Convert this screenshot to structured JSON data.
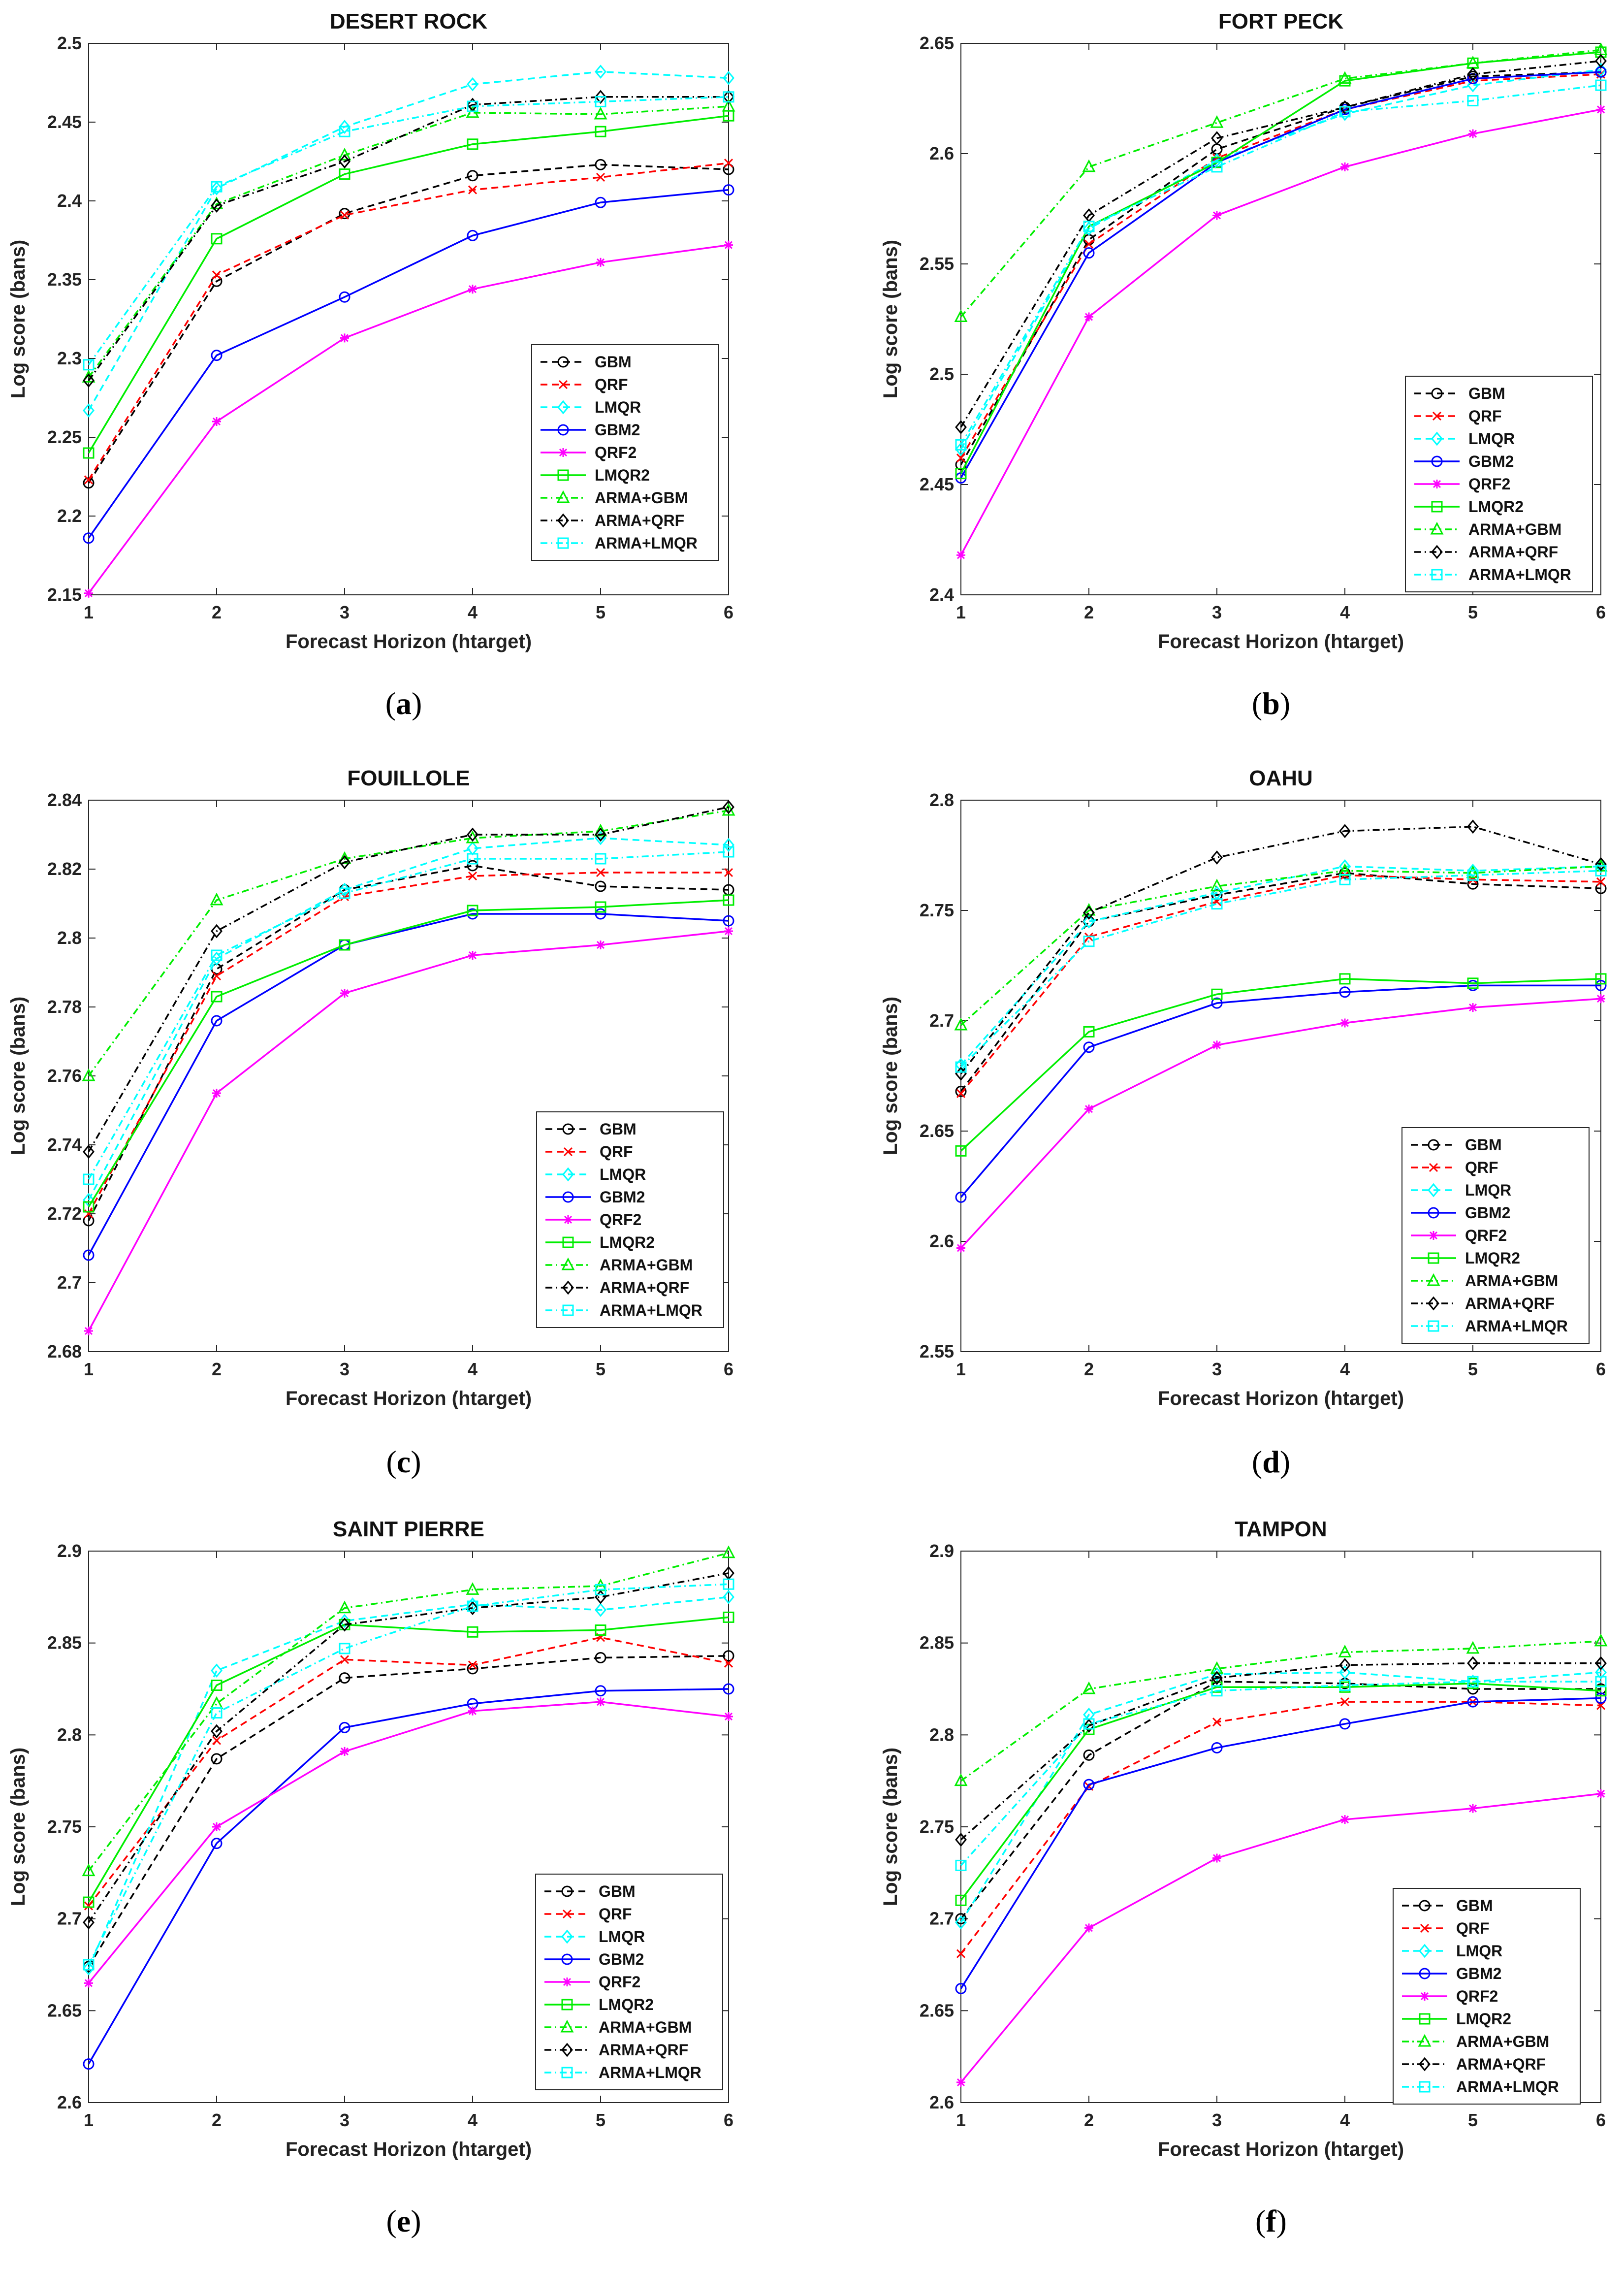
{
  "series_styles": [
    {
      "name": "GBM",
      "color": "#000000",
      "marker": "circle",
      "dash": "dashed"
    },
    {
      "name": "QRF",
      "color": "#ff0000",
      "marker": "x",
      "dash": "dashed"
    },
    {
      "name": "LMQR",
      "color": "#00ffff",
      "marker": "diamond",
      "dash": "dashed"
    },
    {
      "name": "GBM2",
      "color": "#0000ff",
      "marker": "circle",
      "dash": "solid"
    },
    {
      "name": "QRF2",
      "color": "#ff00ff",
      "marker": "asterisk",
      "dash": "solid"
    },
    {
      "name": "LMQR2",
      "color": "#00ee00",
      "marker": "square",
      "dash": "solid"
    },
    {
      "name": "ARMA+GBM",
      "color": "#00ee00",
      "marker": "triangle",
      "dash": "dashdot"
    },
    {
      "name": "ARMA+QRF",
      "color": "#000000",
      "marker": "diamond",
      "dash": "dashdot"
    },
    {
      "name": "ARMA+LMQR",
      "color": "#00ffff",
      "marker": "square",
      "dash": "dashdot"
    }
  ],
  "chart_data": [
    {
      "panel": "(a)",
      "type": "line",
      "title": "DESERT ROCK",
      "xlabel": "Forecast Horizon (htarget)",
      "ylabel": "Log score (bans)",
      "x": [
        1,
        2,
        3,
        4,
        5,
        6
      ],
      "xticks": [
        "1",
        "2",
        "3",
        "4",
        "5",
        "6"
      ],
      "ylim": [
        2.15,
        2.5
      ],
      "yticks": [
        "2.15",
        "2.2",
        "2.25",
        "2.3",
        "2.35",
        "2.4",
        "2.45",
        "2.5"
      ],
      "legend_position": "right-middle",
      "series": [
        {
          "name": "GBM",
          "values": [
            2.221,
            2.349,
            2.392,
            2.416,
            2.423,
            2.42
          ]
        },
        {
          "name": "QRF",
          "values": [
            2.223,
            2.353,
            2.391,
            2.407,
            2.415,
            2.424
          ]
        },
        {
          "name": "LMQR",
          "values": [
            2.267,
            2.408,
            2.447,
            2.474,
            2.482,
            2.478
          ]
        },
        {
          "name": "GBM2",
          "values": [
            2.186,
            2.302,
            2.339,
            2.378,
            2.399,
            2.407
          ]
        },
        {
          "name": "QRF2",
          "values": [
            2.151,
            2.26,
            2.313,
            2.344,
            2.361,
            2.372
          ]
        },
        {
          "name": "LMQR2",
          "values": [
            2.24,
            2.376,
            2.417,
            2.436,
            2.444,
            2.454
          ]
        },
        {
          "name": "ARMA+GBM",
          "values": [
            2.288,
            2.398,
            2.429,
            2.456,
            2.455,
            2.46
          ]
        },
        {
          "name": "ARMA+QRF",
          "values": [
            2.286,
            2.397,
            2.425,
            2.461,
            2.466,
            2.466
          ]
        },
        {
          "name": "ARMA+LMQR",
          "values": [
            2.296,
            2.409,
            2.444,
            2.46,
            2.463,
            2.466
          ]
        }
      ]
    },
    {
      "panel": "(b)",
      "type": "line",
      "title": "FORT PECK",
      "xlabel": "Forecast Horizon (htarget)",
      "ylabel": "Log score (bans)",
      "x": [
        1,
        2,
        3,
        4,
        5,
        6
      ],
      "xticks": [
        "1",
        "2",
        "3",
        "4",
        "5",
        "6"
      ],
      "ylim": [
        2.4,
        2.65
      ],
      "yticks": [
        "2.4",
        "2.45",
        "2.5",
        "2.55",
        "2.6",
        "2.65"
      ],
      "legend_position": "bottom-right",
      "series": [
        {
          "name": "GBM",
          "values": [
            2.459,
            2.561,
            2.602,
            2.621,
            2.635,
            2.637
          ]
        },
        {
          "name": "QRF",
          "values": [
            2.462,
            2.559,
            2.598,
            2.62,
            2.633,
            2.636
          ]
        },
        {
          "name": "LMQR",
          "values": [
            2.466,
            2.566,
            2.597,
            2.618,
            2.631,
            2.638
          ]
        },
        {
          "name": "GBM2",
          "values": [
            2.453,
            2.555,
            2.596,
            2.62,
            2.634,
            2.637
          ]
        },
        {
          "name": "QRF2",
          "values": [
            2.418,
            2.526,
            2.572,
            2.594,
            2.609,
            2.62
          ]
        },
        {
          "name": "LMQR2",
          "values": [
            2.455,
            2.567,
            2.596,
            2.633,
            2.641,
            2.646
          ]
        },
        {
          "name": "ARMA+GBM",
          "values": [
            2.526,
            2.594,
            2.614,
            2.634,
            2.641,
            2.647
          ]
        },
        {
          "name": "ARMA+QRF",
          "values": [
            2.476,
            2.572,
            2.607,
            2.621,
            2.636,
            2.642
          ]
        },
        {
          "name": "ARMA+LMQR",
          "values": [
            2.468,
            2.567,
            2.594,
            2.619,
            2.624,
            2.631
          ]
        }
      ]
    },
    {
      "panel": "(c)",
      "type": "line",
      "title": "FOUILLOLE",
      "xlabel": "Forecast Horizon (htarget)",
      "ylabel": "Log score (bans)",
      "x": [
        1,
        2,
        3,
        4,
        5,
        6
      ],
      "xticks": [
        "1",
        "2",
        "3",
        "4",
        "5",
        "6"
      ],
      "ylim": [
        2.68,
        2.84
      ],
      "yticks": [
        "2.68",
        "2.7",
        "2.72",
        "2.74",
        "2.76",
        "2.78",
        "2.8",
        "2.82",
        "2.84"
      ],
      "legend_position": "bottom-right",
      "series": [
        {
          "name": "GBM",
          "values": [
            2.718,
            2.791,
            2.814,
            2.821,
            2.815,
            2.814
          ]
        },
        {
          "name": "QRF",
          "values": [
            2.72,
            2.789,
            2.812,
            2.818,
            2.819,
            2.819
          ]
        },
        {
          "name": "LMQR",
          "values": [
            2.724,
            2.794,
            2.814,
            2.826,
            2.829,
            2.827
          ]
        },
        {
          "name": "GBM2",
          "values": [
            2.708,
            2.776,
            2.798,
            2.807,
            2.807,
            2.805
          ]
        },
        {
          "name": "QRF2",
          "values": [
            2.686,
            2.755,
            2.784,
            2.795,
            2.798,
            2.802
          ]
        },
        {
          "name": "LMQR2",
          "values": [
            2.722,
            2.783,
            2.798,
            2.808,
            2.809,
            2.811
          ]
        },
        {
          "name": "ARMA+GBM",
          "values": [
            2.76,
            2.811,
            2.823,
            2.829,
            2.831,
            2.837
          ]
        },
        {
          "name": "ARMA+QRF",
          "values": [
            2.738,
            2.802,
            2.822,
            2.83,
            2.83,
            2.838
          ]
        },
        {
          "name": "ARMA+LMQR",
          "values": [
            2.73,
            2.795,
            2.813,
            2.823,
            2.823,
            2.825
          ]
        }
      ]
    },
    {
      "panel": "(d)",
      "type": "line",
      "title": "OAHU",
      "xlabel": "Forecast Horizon (htarget)",
      "ylabel": "Log score (bans)",
      "x": [
        1,
        2,
        3,
        4,
        5,
        6
      ],
      "xticks": [
        "1",
        "2",
        "3",
        "4",
        "5",
        "6"
      ],
      "ylim": [
        2.55,
        2.8
      ],
      "yticks": [
        "2.55",
        "2.6",
        "2.65",
        "2.7",
        "2.75",
        "2.8"
      ],
      "legend_position": "bottom-right",
      "series": [
        {
          "name": "GBM",
          "values": [
            2.668,
            2.745,
            2.757,
            2.767,
            2.762,
            2.76
          ]
        },
        {
          "name": "QRF",
          "values": [
            2.667,
            2.738,
            2.754,
            2.766,
            2.764,
            2.763
          ]
        },
        {
          "name": "LMQR",
          "values": [
            2.68,
            2.745,
            2.758,
            2.77,
            2.768,
            2.77
          ]
        },
        {
          "name": "GBM2",
          "values": [
            2.62,
            2.688,
            2.708,
            2.713,
            2.716,
            2.716
          ]
        },
        {
          "name": "QRF2",
          "values": [
            2.597,
            2.66,
            2.689,
            2.699,
            2.706,
            2.71
          ]
        },
        {
          "name": "LMQR2",
          "values": [
            2.641,
            2.695,
            2.712,
            2.719,
            2.717,
            2.719
          ]
        },
        {
          "name": "ARMA+GBM",
          "values": [
            2.698,
            2.75,
            2.761,
            2.768,
            2.767,
            2.77
          ]
        },
        {
          "name": "ARMA+QRF",
          "values": [
            2.676,
            2.749,
            2.774,
            2.786,
            2.788,
            2.771
          ]
        },
        {
          "name": "ARMA+LMQR",
          "values": [
            2.679,
            2.736,
            2.753,
            2.764,
            2.766,
            2.768
          ]
        }
      ]
    },
    {
      "panel": "(e)",
      "type": "line",
      "title": "SAINT PIERRE",
      "xlabel": "Forecast Horizon (htarget)",
      "ylabel": "Log score (bans)",
      "x": [
        1,
        2,
        3,
        4,
        5,
        6
      ],
      "xticks": [
        "1",
        "2",
        "3",
        "4",
        "5",
        "6"
      ],
      "ylim": [
        2.6,
        2.9
      ],
      "yticks": [
        "2.6",
        "2.65",
        "2.7",
        "2.75",
        "2.8",
        "2.85",
        "2.9"
      ],
      "legend_position": "bottom-right",
      "series": [
        {
          "name": "GBM",
          "values": [
            2.674,
            2.787,
            2.831,
            2.836,
            2.842,
            2.843
          ]
        },
        {
          "name": "QRF",
          "values": [
            2.707,
            2.797,
            2.841,
            2.838,
            2.853,
            2.839
          ]
        },
        {
          "name": "LMQR",
          "values": [
            2.673,
            2.835,
            2.862,
            2.871,
            2.868,
            2.875
          ]
        },
        {
          "name": "GBM2",
          "values": [
            2.621,
            2.741,
            2.804,
            2.817,
            2.824,
            2.825
          ]
        },
        {
          "name": "QRF2",
          "values": [
            2.665,
            2.75,
            2.791,
            2.813,
            2.818,
            2.81
          ]
        },
        {
          "name": "LMQR2",
          "values": [
            2.709,
            2.827,
            2.86,
            2.856,
            2.857,
            2.864
          ]
        },
        {
          "name": "ARMA+GBM",
          "values": [
            2.726,
            2.817,
            2.869,
            2.879,
            2.881,
            2.899
          ]
        },
        {
          "name": "ARMA+QRF",
          "values": [
            2.698,
            2.802,
            2.86,
            2.869,
            2.875,
            2.888
          ]
        },
        {
          "name": "ARMA+LMQR",
          "values": [
            2.675,
            2.812,
            2.847,
            2.87,
            2.879,
            2.882
          ]
        }
      ]
    },
    {
      "panel": "(f)",
      "type": "line",
      "title": "TAMPON",
      "xlabel": "Forecast Horizon (htarget)",
      "ylabel": "Log score (bans)",
      "x": [
        1,
        2,
        3,
        4,
        5,
        6
      ],
      "xticks": [
        "1",
        "2",
        "3",
        "4",
        "5",
        "6"
      ],
      "ylim": [
        2.6,
        2.9
      ],
      "yticks": [
        "2.6",
        "2.65",
        "2.7",
        "2.75",
        "2.8",
        "2.85",
        "2.9"
      ],
      "legend_position": "bottom-right",
      "series": [
        {
          "name": "GBM",
          "values": [
            2.7,
            2.789,
            2.829,
            2.828,
            2.825,
            2.825
          ]
        },
        {
          "name": "QRF",
          "values": [
            2.681,
            2.772,
            2.807,
            2.818,
            2.818,
            2.816
          ]
        },
        {
          "name": "LMQR",
          "values": [
            2.698,
            2.811,
            2.833,
            2.834,
            2.829,
            2.834
          ]
        },
        {
          "name": "GBM2",
          "values": [
            2.662,
            2.773,
            2.793,
            2.806,
            2.818,
            2.82
          ]
        },
        {
          "name": "QRF2",
          "values": [
            2.611,
            2.695,
            2.733,
            2.754,
            2.76,
            2.768
          ]
        },
        {
          "name": "LMQR2",
          "values": [
            2.71,
            2.803,
            2.826,
            2.826,
            2.828,
            2.824
          ]
        },
        {
          "name": "ARMA+GBM",
          "values": [
            2.775,
            2.825,
            2.836,
            2.845,
            2.847,
            2.851
          ]
        },
        {
          "name": "ARMA+QRF",
          "values": [
            2.743,
            2.805,
            2.831,
            2.838,
            2.839,
            2.839
          ]
        },
        {
          "name": "ARMA+LMQR",
          "values": [
            2.729,
            2.806,
            2.824,
            2.827,
            2.829,
            2.829
          ]
        }
      ]
    }
  ]
}
